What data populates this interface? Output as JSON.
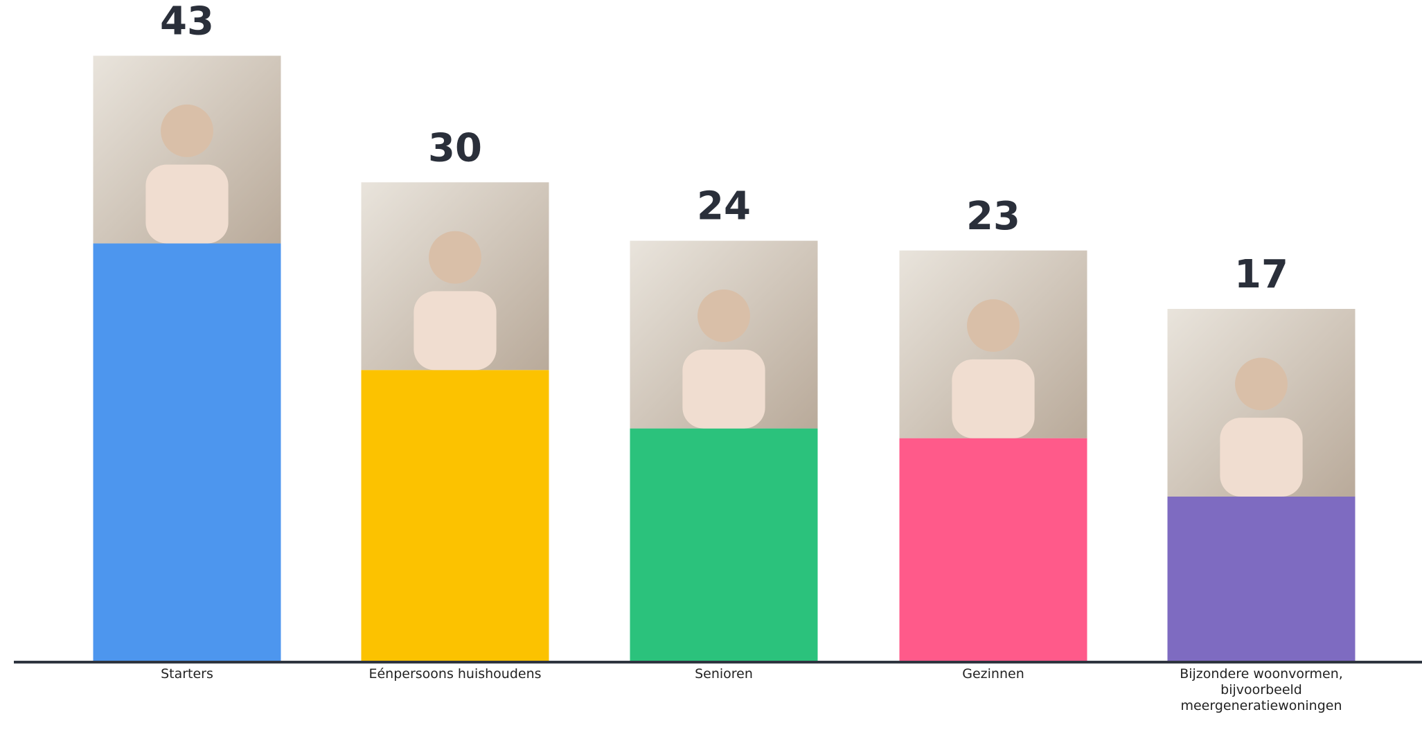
{
  "chart_data": {
    "type": "bar",
    "categories": [
      "Starters",
      "Eénpersoons huishoudens",
      "Senioren",
      "Gezinnen",
      "Bijzondere woonvormen, bijvoorbeeld meergeneratiewoningen"
    ],
    "values": [
      43,
      30,
      24,
      23,
      17
    ],
    "colors": [
      "#4d96ee",
      "#fcc200",
      "#2bc27c",
      "#ff5a8a",
      "#7e6bc1"
    ],
    "ylim": [
      0,
      68
    ]
  }
}
